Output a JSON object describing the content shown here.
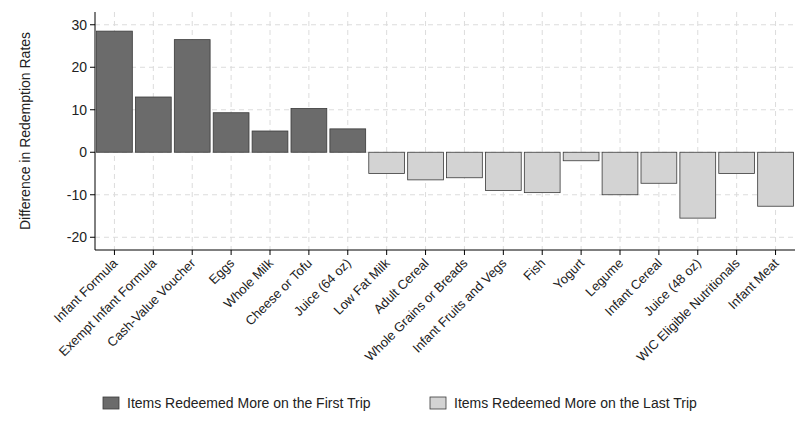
{
  "chart_data": {
    "type": "bar",
    "y_label": "Difference in Redemption Rates",
    "categories": [
      "Infant Formula",
      "Exempt Infant Formula",
      "Cash-Value Voucher",
      "Eggs",
      "Whole Milk",
      "Cheese or Tofu",
      "Juice (64 oz)",
      "Low Fat Milk",
      "Adult Cereal",
      "Whole Grains or Breads",
      "Infant Fruits and Vegs",
      "Fish",
      "Yogurt",
      "Legume",
      "Infant Cereal",
      "Juice (48 oz)",
      "WIC Eligible Nutritionals",
      "Infant Meat"
    ],
    "series": [
      {
        "name": "Items Redeemed More on the First Trip",
        "color": "#6b6b6b",
        "values": [
          28.5,
          13,
          26.5,
          9.3,
          5,
          10.3,
          5.5,
          null,
          null,
          null,
          null,
          null,
          null,
          null,
          null,
          null,
          null,
          null
        ]
      },
      {
        "name": "Items Redeemed More on the Last Trip",
        "color": "#d3d3d3",
        "values": [
          null,
          null,
          null,
          null,
          null,
          null,
          null,
          -5,
          -6.5,
          -6,
          -9,
          -9.5,
          -2,
          -10,
          -7.3,
          -15.5,
          -5,
          -12.7
        ]
      }
    ],
    "ylim": [
      -23,
      33
    ],
    "yticks": [
      -20,
      -10,
      0,
      10,
      20,
      30
    ],
    "grid": true,
    "legend": "bottom"
  }
}
